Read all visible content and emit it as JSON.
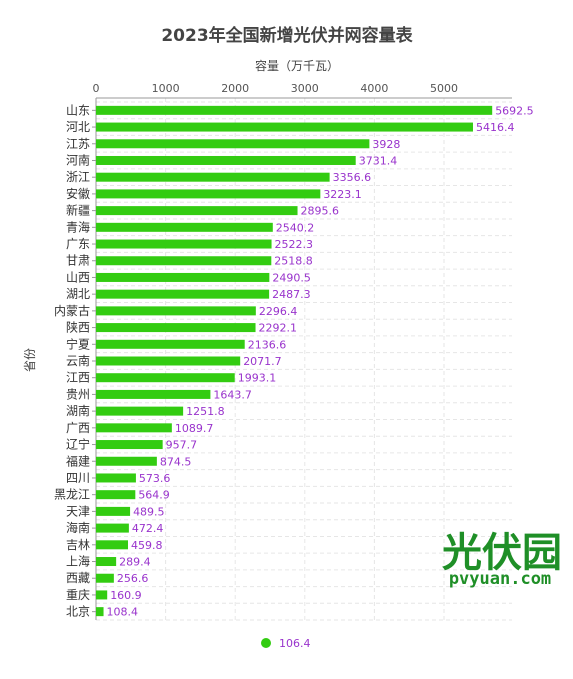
{
  "watermark": {
    "logo_text": "光伏园",
    "url_text": "pvyuan.com"
  },
  "legend": {
    "label": "106.4"
  },
  "colors": {
    "bar": "#33cc11",
    "value_label": "#9933cc",
    "grid": "#e6e6e6",
    "axis": "#999999"
  },
  "chart_data": {
    "type": "bar",
    "orientation": "horizontal",
    "title": "2023年全国新增光伏并网容量表",
    "xlabel": "容量（万千瓦）",
    "ylabel": "省份",
    "xlim": [
      0,
      5700
    ],
    "xticks": [
      "0",
      "1000",
      "2000",
      "3000",
      "4000",
      "5000"
    ],
    "grid": true,
    "legend_position": "bottom",
    "categories": [
      "山东",
      "河北",
      "江苏",
      "河南",
      "浙江",
      "安徽",
      "新疆",
      "青海",
      "广东",
      "甘肃",
      "山西",
      "湖北",
      "内蒙古",
      "陕西",
      "宁夏",
      "云南",
      "江西",
      "贵州",
      "湖南",
      "广西",
      "辽宁",
      "福建",
      "四川",
      "黑龙江",
      "天津",
      "海南",
      "吉林",
      "上海",
      "西藏",
      "重庆",
      "北京"
    ],
    "values": [
      5692.5,
      5416.4,
      3928,
      3731.4,
      3356.6,
      3223.1,
      2895.6,
      2540.2,
      2522.3,
      2518.8,
      2490.5,
      2487.3,
      2296.4,
      2292.1,
      2136.6,
      2071.7,
      1993.1,
      1643.7,
      1251.8,
      1089.7,
      957.7,
      874.5,
      573.6,
      564.9,
      489.5,
      472.4,
      459.8,
      289.4,
      256.6,
      160.9,
      108.4
    ],
    "value_labels": [
      "5692.5",
      "5416.4",
      "3928",
      "3731.4",
      "3356.6",
      "3223.1",
      "2895.6",
      "2540.2",
      "2522.3",
      "2518.8",
      "2490.5",
      "2487.3",
      "2296.4",
      "2292.1",
      "2136.6",
      "2071.7",
      "1993.1",
      "1643.7",
      "1251.8",
      "1089.7",
      "957.7",
      "874.5",
      "573.6",
      "564.9",
      "489.5",
      "472.4",
      "459.8",
      "289.4",
      "256.6",
      "160.9",
      "108.4"
    ]
  }
}
